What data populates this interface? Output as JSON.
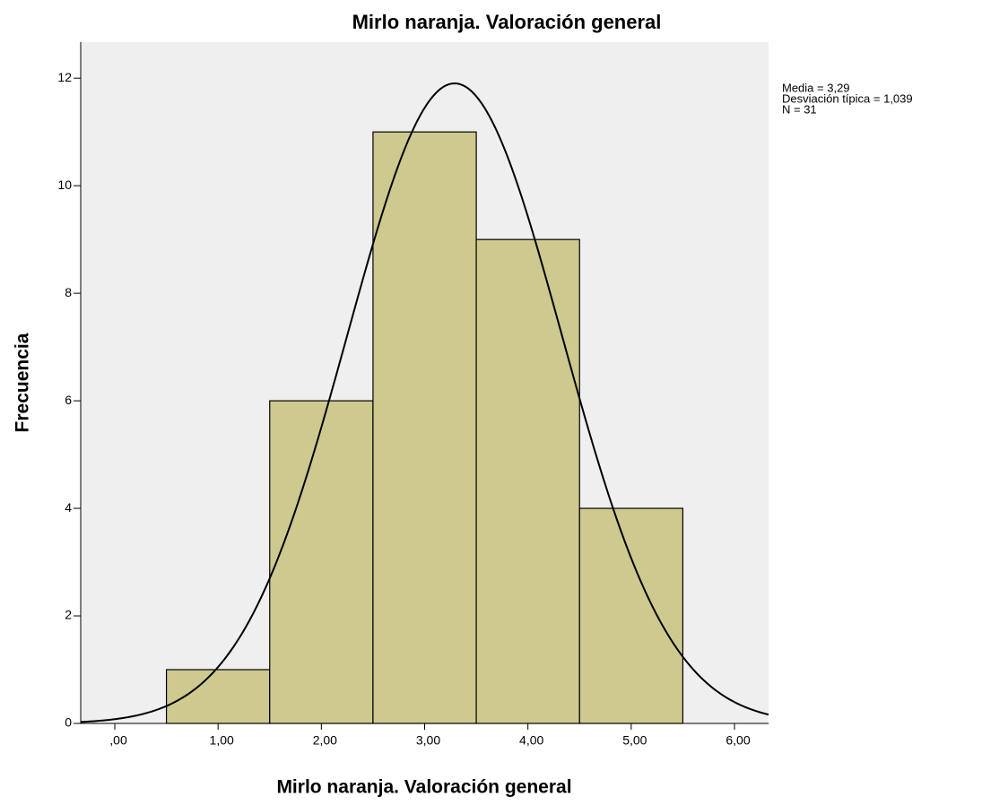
{
  "chart_data": {
    "type": "histogram",
    "title": "Mirlo naranja. Valoración general",
    "x_label": "Mirlo naranja. Valoración general",
    "y_label": "Frecuencia",
    "bins": [
      0.5,
      1.5,
      2.5,
      3.5,
      4.5,
      5.5
    ],
    "counts": [
      1,
      6,
      11,
      9,
      4
    ],
    "color": "#cdc98f",
    "background": "#efefef",
    "xlim": [
      -0.33,
      6.33
    ],
    "xticks": [
      {
        "value": 0,
        "label": ",00"
      },
      {
        "value": 1,
        "label": "1,00"
      },
      {
        "value": 2,
        "label": "2,00"
      },
      {
        "value": 3,
        "label": "3,00"
      },
      {
        "value": 4,
        "label": "4,00"
      },
      {
        "value": 5,
        "label": "5,00"
      },
      {
        "value": 6,
        "label": "6,00"
      }
    ],
    "ylim": [
      0,
      12.67
    ],
    "yticks": [
      0,
      2,
      4,
      6,
      8,
      10,
      12
    ],
    "normal_curve": true,
    "stats": [
      {
        "value": 3.29,
        "label": "Media = 3,29"
      },
      {
        "value": 1.039,
        "label": "Desviación típica = 1,039"
      },
      {
        "value": 31,
        "label": "N = 31"
      }
    ]
  }
}
